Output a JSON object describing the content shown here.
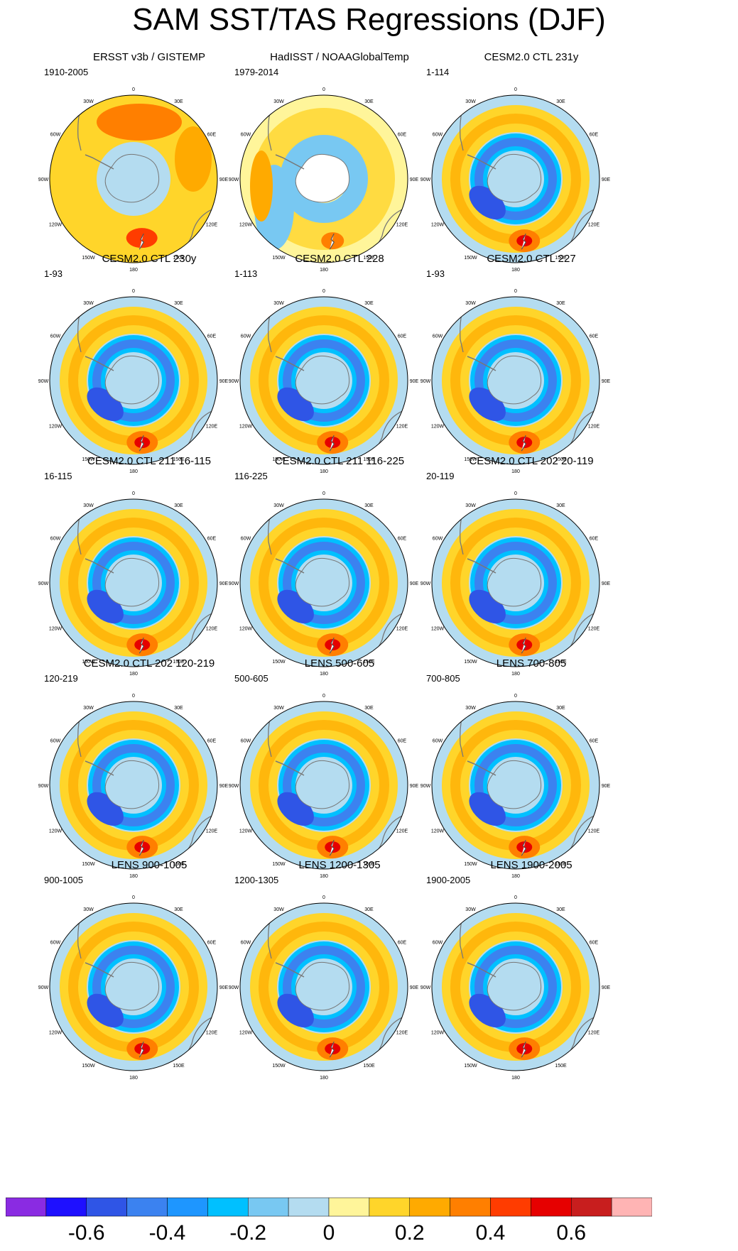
{
  "title": "SAM SST/TAS Regressions (DJF)",
  "chart_data": {
    "type": "heatmap",
    "projection": "south-polar-stereographic",
    "title": "SAM SST/TAS Regressions (DJF)",
    "longitude_labels": [
      "0",
      "30E",
      "60E",
      "90E",
      "120E",
      "150E",
      "180",
      "150W",
      "120W",
      "90W",
      "60W",
      "30W"
    ],
    "colorbar": {
      "levels": [
        -0.7,
        -0.6,
        -0.5,
        -0.4,
        -0.3,
        -0.2,
        -0.1,
        0,
        0.1,
        0.2,
        0.3,
        0.4,
        0.5,
        0.6,
        0.7
      ],
      "tick_labels": [
        "-0.6",
        "-0.4",
        "-0.2",
        "0",
        "0.2",
        "0.4",
        "0.6"
      ],
      "tick_values": [
        -0.6,
        -0.4,
        -0.2,
        0,
        0.2,
        0.4,
        0.6
      ],
      "colors": [
        "#8a2be2",
        "#1e10ff",
        "#2f55e6",
        "#3b82f0",
        "#1e96ff",
        "#00c0ff",
        "#78c8f2",
        "#b4dcf0",
        "#fff59a",
        "#ffd52a",
        "#ffaa00",
        "#ff7f00",
        "#ff3c00",
        "#e60000",
        "#c81e1e",
        "#ffb4b4"
      ]
    },
    "panels": [
      {
        "title": "ERSST v3b / GISTEMP",
        "range": "1910-2005",
        "pattern": "obs1"
      },
      {
        "title": "HadISST / NOAAGlobalTemp",
        "range": "1979-2014",
        "pattern": "obs2"
      },
      {
        "title": "CESM2.0 CTL 231y",
        "range": "1-114",
        "pattern": "model"
      },
      {
        "title": "CESM2.0 CTL 230y",
        "range": "1-93",
        "pattern": "model"
      },
      {
        "title": "CESM2.0 CTL 228",
        "range": "1-113",
        "pattern": "model"
      },
      {
        "title": "CESM2.0 CTL 227",
        "range": "1-93",
        "pattern": "model"
      },
      {
        "title": "CESM2.0 CTL 211 16-115",
        "range": "16-115",
        "pattern": "model"
      },
      {
        "title": "CESM2.0 CTL 211 116-225",
        "range": "116-225",
        "pattern": "model"
      },
      {
        "title": "CESM2.0 CTL 202 20-119",
        "range": "20-119",
        "pattern": "model"
      },
      {
        "title": "CESM2.0 CTL 202 120-219",
        "range": "120-219",
        "pattern": "model"
      },
      {
        "title": "LENS 500-605",
        "range": "500-605",
        "pattern": "model"
      },
      {
        "title": "LENS 700-805",
        "range": "700-805",
        "pattern": "model"
      },
      {
        "title": "LENS 900-1005",
        "range": "900-1005",
        "pattern": "model"
      },
      {
        "title": "LENS 1200-1305",
        "range": "1200-1305",
        "pattern": "model"
      },
      {
        "title": "LENS 1900-2005",
        "range": "1900-2005",
        "pattern": "model"
      }
    ]
  }
}
